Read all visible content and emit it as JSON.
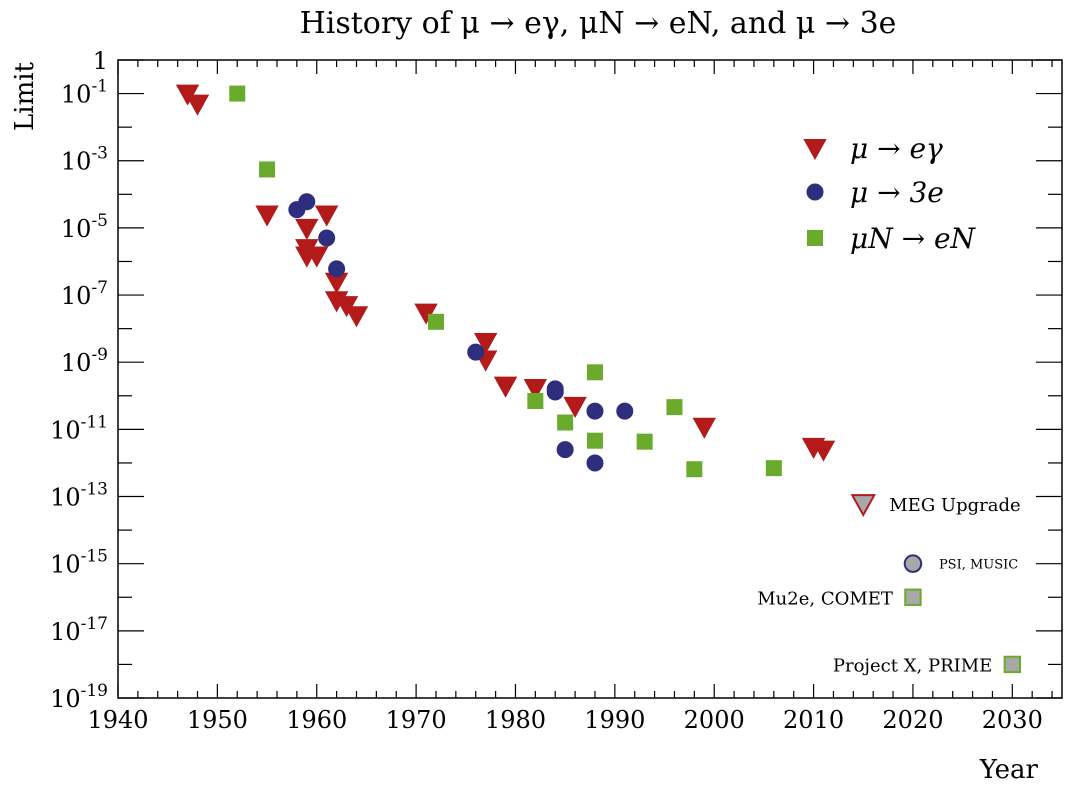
{
  "colors": {
    "mu_e_gamma": "#b31b1b",
    "mu_3e": "#2e2e7e",
    "mu_N_eN": "#6aab2e",
    "future_fill": "#a8a8a8",
    "axis": "#000000"
  },
  "chart_data": {
    "type": "scatter",
    "title": "History of μ → eγ,  μN → eN,  and μ → 3e",
    "xlabel": "Year",
    "ylabel": "Limit",
    "xlim": [
      1940,
      2035
    ],
    "ylim": [
      1e-19,
      1
    ],
    "yscale": "log",
    "grid": false,
    "legend_position": "top-right",
    "x_tick_labels": [
      "1940",
      "1950",
      "1960",
      "1970",
      "1980",
      "1990",
      "2000",
      "2010",
      "2020",
      "2030"
    ],
    "y_tick_labels": [
      {
        "base": "10",
        "exp": "-19",
        "value": 1e-19
      },
      {
        "base": "10",
        "exp": "-17",
        "value": 1e-17
      },
      {
        "base": "10",
        "exp": "-15",
        "value": 1e-15
      },
      {
        "base": "10",
        "exp": "-13",
        "value": 1e-13
      },
      {
        "base": "10",
        "exp": "-11",
        "value": 1e-11
      },
      {
        "base": "10",
        "exp": "-9",
        "value": 1e-09
      },
      {
        "base": "10",
        "exp": "-7",
        "value": 1e-07
      },
      {
        "base": "10",
        "exp": "-5",
        "value": 1e-05
      },
      {
        "base": "10",
        "exp": "-3",
        "value": 0.001
      },
      {
        "base": "10",
        "exp": "-1",
        "value": 0.1
      },
      {
        "base": "1",
        "exp": "",
        "value": 1
      }
    ],
    "series": [
      {
        "name": "μ → eγ",
        "marker": "triangle-down",
        "points": [
          [
            1947,
            0.1
          ],
          [
            1948,
            0.05
          ],
          [
            1955,
            2.5e-05
          ],
          [
            1959,
            1e-05
          ],
          [
            1959,
            2.5e-06
          ],
          [
            1959,
            1.5e-06
          ],
          [
            1960,
            1.5e-06
          ],
          [
            1961,
            2.5e-05
          ],
          [
            1962,
            2.5e-07
          ],
          [
            1962,
            7e-08
          ],
          [
            1963,
            5e-08
          ],
          [
            1964,
            2.5e-08
          ],
          [
            1971,
            3e-08
          ],
          [
            1977,
            4e-09
          ],
          [
            1977,
            1.2e-09
          ],
          [
            1979,
            2e-10
          ],
          [
            1982,
            1.7e-10
          ],
          [
            1986,
            5e-11
          ],
          [
            1999,
            1.2e-11
          ],
          [
            2010,
            3e-12
          ],
          [
            2011,
            2.5e-12
          ]
        ]
      },
      {
        "name": "μ → 3e",
        "marker": "circle",
        "points": [
          [
            1958,
            3.5e-05
          ],
          [
            1959,
            6e-05
          ],
          [
            1961,
            5e-06
          ],
          [
            1962,
            6e-07
          ],
          [
            1976,
            2e-09
          ],
          [
            1984,
            1.6e-10
          ],
          [
            1984,
            1.3e-10
          ],
          [
            1985,
            2.5e-12
          ],
          [
            1988,
            3.5e-11
          ],
          [
            1988,
            1e-12
          ],
          [
            1991,
            3.5e-11
          ]
        ]
      },
      {
        "name": "μN → eN",
        "marker": "square",
        "points": [
          [
            1952,
            0.1
          ],
          [
            1955,
            0.00055
          ],
          [
            1972,
            1.6e-08
          ],
          [
            1982,
            7e-11
          ],
          [
            1985,
            1.6e-11
          ],
          [
            1988,
            5e-10
          ],
          [
            1988,
            4.6e-12
          ],
          [
            1993,
            4.3e-12
          ],
          [
            1996,
            4.6e-11
          ],
          [
            1998,
            6.5e-13
          ],
          [
            2006,
            7e-13
          ]
        ]
      }
    ],
    "future_projections": [
      {
        "label": "MEG Upgrade",
        "marker": "triangle-down",
        "x": 2015,
        "y": 6e-14,
        "label_side": "right"
      },
      {
        "label": "PSI, MUSIC",
        "marker": "circle",
        "x": 2020,
        "y": 1e-15,
        "label_side": "right"
      },
      {
        "label": "Mu2e, COMET",
        "marker": "square",
        "x": 2020,
        "y": 1e-16,
        "label_side": "left"
      },
      {
        "label": "Project X, PRIME",
        "marker": "square",
        "x": 2030,
        "y": 1e-18,
        "label_side": "left"
      }
    ]
  }
}
